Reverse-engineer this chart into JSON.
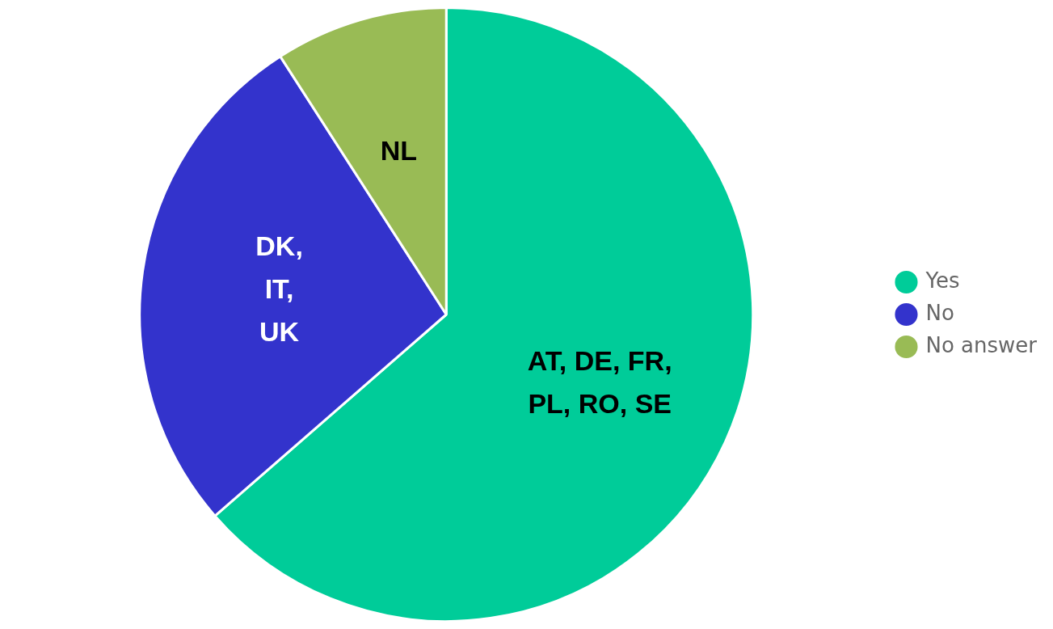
{
  "chart_data": {
    "type": "pie",
    "categories": [
      "Yes",
      "No",
      "No answer"
    ],
    "values": [
      63.6,
      27.3,
      9.1
    ],
    "colors": [
      "#00cc99",
      "#3333cc",
      "#99bb55"
    ],
    "value_labels": [
      "AT, DE, FR,\nPL, RO, SE",
      "DK,\nIT,\nUK",
      "NL"
    ],
    "legend": "right"
  }
}
